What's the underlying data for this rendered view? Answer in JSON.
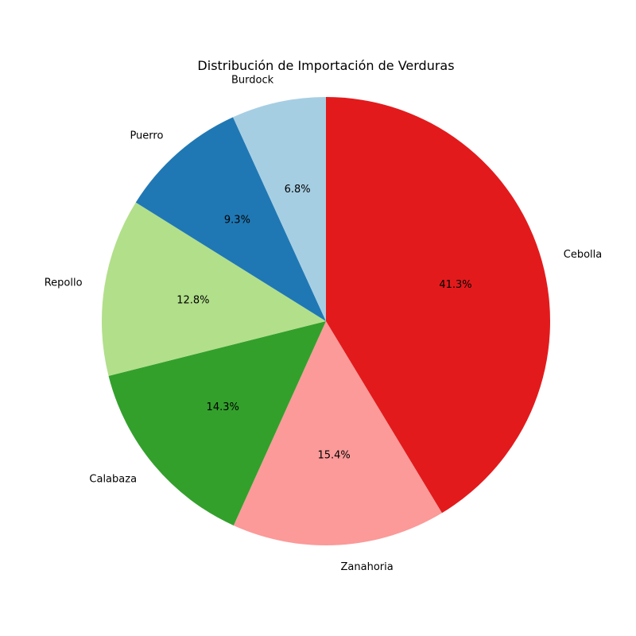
{
  "chart_data": {
    "type": "pie",
    "title": "Distribución de Importación de Verduras",
    "start_angle_deg": 90,
    "direction": "clockwise",
    "legend": "none",
    "slices": [
      {
        "label": "Cebolla",
        "value": 41.3,
        "pct_label": "41.3%",
        "color": "#e31a1c"
      },
      {
        "label": "Zanahoria",
        "value": 15.4,
        "pct_label": "15.4%",
        "color": "#fb9a99"
      },
      {
        "label": "Calabaza",
        "value": 14.3,
        "pct_label": "14.3%",
        "color": "#33a02c"
      },
      {
        "label": "Repollo",
        "value": 12.8,
        "pct_label": "12.8%",
        "color": "#b2df8a"
      },
      {
        "label": "Puerro",
        "value": 9.3,
        "pct_label": "9.3%",
        "color": "#1f78b4"
      },
      {
        "label": "Burdock",
        "value": 6.8,
        "pct_label": "6.8%",
        "color": "#a6cee3"
      }
    ]
  }
}
